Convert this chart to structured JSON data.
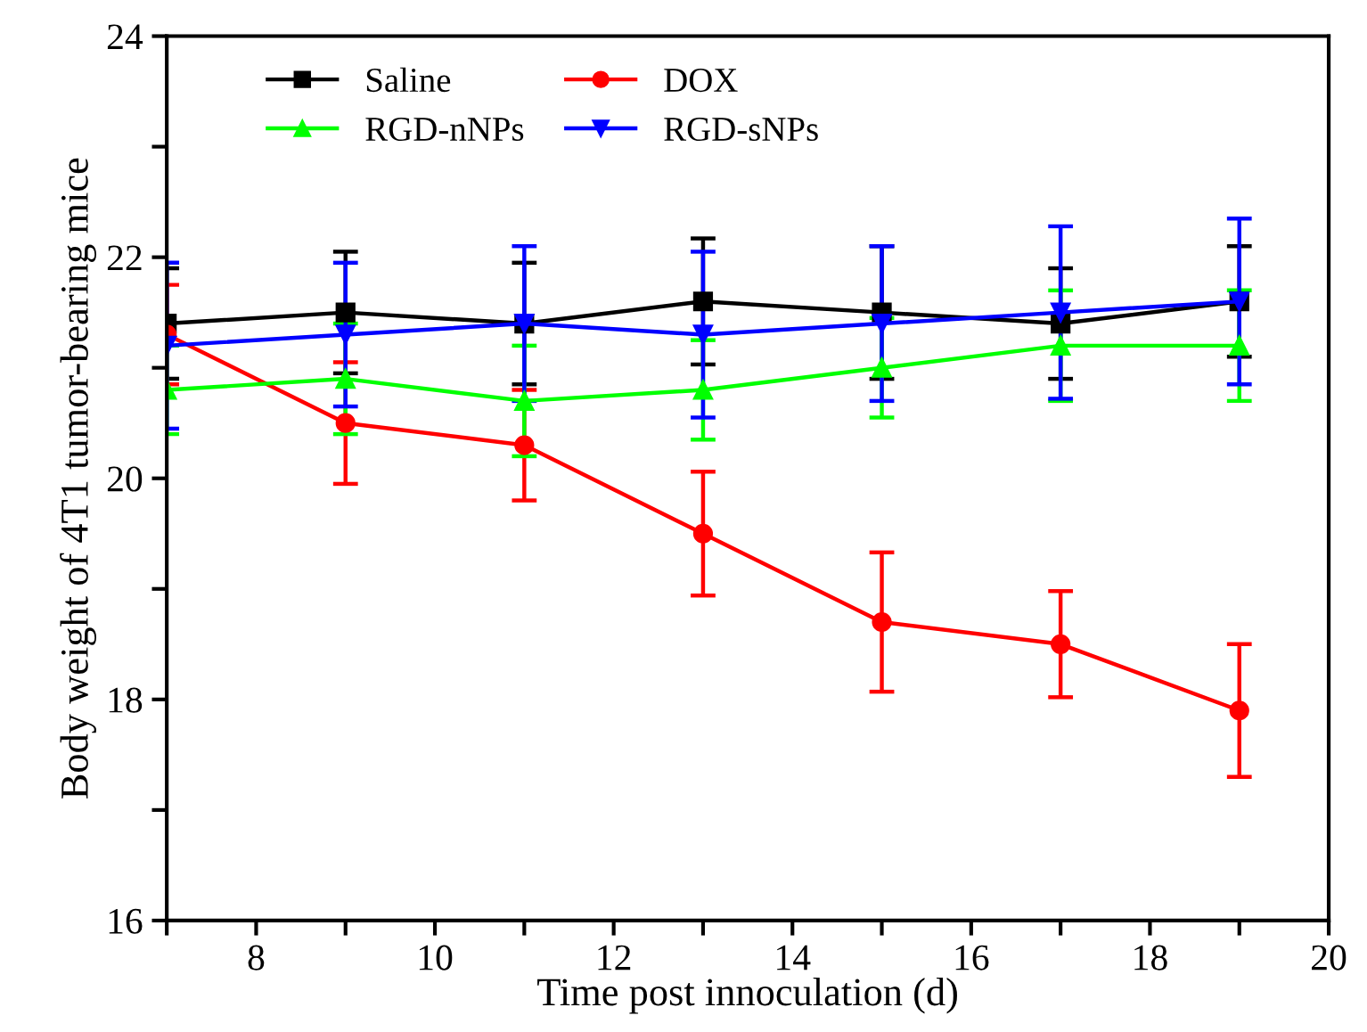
{
  "chart_data": {
    "type": "line",
    "xlabel": "Time post innoculation (d)",
    "ylabel": "Body weight of 4T1 tumor-bearing mice",
    "x": [
      7,
      9,
      11,
      13,
      15,
      17,
      19
    ],
    "series": [
      {
        "name": "Saline",
        "color": "#000000",
        "marker": "square",
        "values": [
          21.4,
          21.5,
          21.4,
          21.6,
          21.5,
          21.4,
          21.6
        ],
        "errors": [
          0.5,
          0.55,
          0.55,
          0.57,
          0.6,
          0.5,
          0.5
        ]
      },
      {
        "name": "DOX",
        "color": "#ff0000",
        "marker": "circle",
        "values": [
          21.3,
          20.5,
          20.3,
          19.5,
          18.7,
          18.5,
          17.9
        ],
        "errors": [
          0.45,
          0.55,
          0.5,
          0.56,
          0.63,
          0.48,
          0.6
        ]
      },
      {
        "name": "RGD-nNPs",
        "color": "#00ff00",
        "marker": "triangle",
        "values": [
          20.8,
          20.9,
          20.7,
          20.8,
          21.0,
          21.2,
          21.2
        ],
        "errors": [
          0.4,
          0.5,
          0.5,
          0.45,
          0.45,
          0.5,
          0.5
        ]
      },
      {
        "name": "RGD-sNPs",
        "color": "#0000ff",
        "marker": "triangle_down",
        "values": [
          21.2,
          21.3,
          21.4,
          21.3,
          21.4,
          21.5,
          21.6
        ],
        "errors": [
          0.75,
          0.65,
          0.7,
          0.75,
          0.7,
          0.78,
          0.75
        ]
      }
    ],
    "xlim": [
      7,
      20
    ],
    "xticks": [
      {
        "value": 7,
        "label": null
      },
      8,
      {
        "value": 9,
        "label": null
      },
      10,
      {
        "value": 11,
        "label": null
      },
      12,
      {
        "value": 13,
        "label": null
      },
      14,
      {
        "value": 15,
        "label": null
      },
      16,
      {
        "value": 17,
        "label": null
      },
      18,
      {
        "value": 19,
        "label": null
      },
      20
    ],
    "ylim": [
      16,
      24
    ],
    "yticks": [
      16,
      {
        "value": 17,
        "label": null
      },
      18,
      {
        "value": 19,
        "label": null
      },
      20,
      {
        "value": 21,
        "label": null
      },
      22,
      {
        "value": 23,
        "label": null
      },
      24
    ],
    "legend": "top left",
    "grid": false,
    "line_style": "solid"
  }
}
